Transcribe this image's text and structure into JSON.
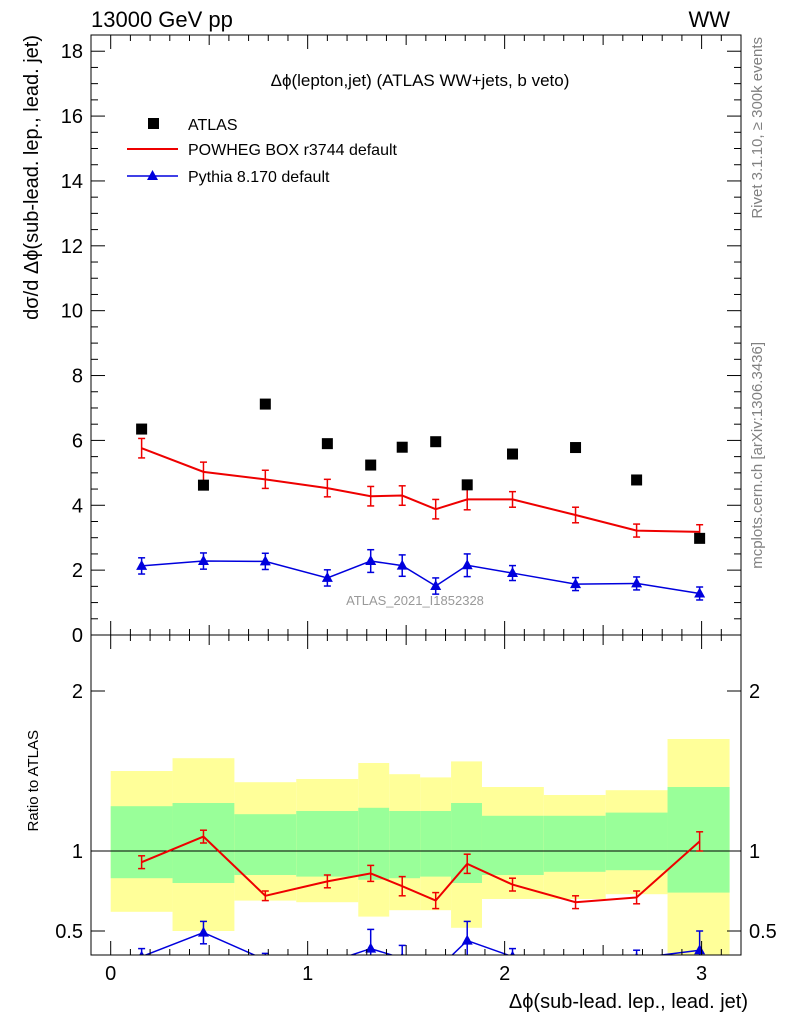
{
  "header": {
    "left": "13000 GeV pp",
    "right": "WW"
  },
  "side_labels": {
    "rivet": "Rivet 3.1.10, ≥ 300k events",
    "mcplots": "mcplots.cern.ch [arXiv:1306.3436]"
  },
  "watermark": "ATLAS_2021_I1852328",
  "chart_data": [
    {
      "panel": "main",
      "type": "scatter",
      "title": "Δϕ(lepton,jet) (ATLAS WW+jets, b veto)",
      "ylabel": "dσ/d Δϕ(sub-lead. lep., lead. jet)",
      "xlabel": "Δϕ(sub-lead. lep., lead. jet)",
      "xlim": [
        -0.1,
        3.2
      ],
      "ylim": [
        0,
        18.5
      ],
      "yticks": [
        0,
        2,
        4,
        6,
        8,
        10,
        12,
        14,
        16,
        18
      ],
      "ytick_labels": [
        "0",
        "2",
        "4",
        "6",
        "8",
        "10",
        "12",
        "14",
        "16",
        "18"
      ],
      "legend_position": "top-left",
      "colors": {
        "atlas": "#000000",
        "powheg": "#ee0000",
        "pythia": "#0000dd"
      },
      "x": [
        0.157,
        0.471,
        0.785,
        1.1,
        1.32,
        1.48,
        1.65,
        1.81,
        2.04,
        2.36,
        2.67,
        2.99
      ],
      "series": [
        {
          "name": "ATLAS",
          "style": "marker",
          "values": [
            6.35,
            4.62,
            7.12,
            5.9,
            5.24,
            5.79,
            5.96,
            4.63,
            5.58,
            5.78,
            4.78,
            2.98
          ]
        },
        {
          "name": "POWHEG BOX r3744 default",
          "style": "line",
          "values": [
            5.76,
            5.03,
            4.8,
            4.53,
            4.28,
            4.3,
            3.88,
            4.18,
            4.18,
            3.7,
            3.22,
            3.18
          ],
          "errors": [
            0.3,
            0.3,
            0.28,
            0.27,
            0.3,
            0.3,
            0.3,
            0.32,
            0.24,
            0.24,
            0.2,
            0.22
          ]
        },
        {
          "name": "Pythia 8.170 default",
          "style": "line-triangle",
          "values": [
            2.13,
            2.28,
            2.27,
            1.76,
            2.28,
            2.14,
            1.51,
            2.15,
            1.91,
            1.57,
            1.59,
            1.28
          ],
          "errors": [
            0.25,
            0.25,
            0.25,
            0.25,
            0.35,
            0.33,
            0.25,
            0.35,
            0.23,
            0.2,
            0.2,
            0.2
          ]
        }
      ]
    },
    {
      "panel": "ratio",
      "type": "line",
      "ylabel": "Ratio to ATLAS",
      "xlim": [
        -0.1,
        3.2
      ],
      "ylim": [
        0.35,
        2.35
      ],
      "yticks": [
        0.5,
        1,
        2
      ],
      "ytick_labels": [
        "0.5",
        "1",
        "2"
      ],
      "xticks": [
        0,
        1,
        2,
        3
      ],
      "xtick_labels": [
        "0",
        "1",
        "2",
        "3"
      ],
      "bands": {
        "edges": [
          0.0,
          0.314,
          0.628,
          0.942,
          1.257,
          1.414,
          1.571,
          1.728,
          1.885,
          2.199,
          2.513,
          2.827,
          3.142
        ],
        "yellow": [
          [
            0.62,
            1.5
          ],
          [
            0.5,
            1.58
          ],
          [
            0.69,
            1.43
          ],
          [
            0.68,
            1.45
          ],
          [
            0.59,
            1.55
          ],
          [
            0.63,
            1.48
          ],
          [
            0.63,
            1.46
          ],
          [
            0.52,
            1.56
          ],
          [
            0.7,
            1.4
          ],
          [
            0.7,
            1.35
          ],
          [
            0.73,
            1.38
          ],
          [
            0.35,
            1.7
          ]
        ],
        "green": [
          [
            0.83,
            1.28
          ],
          [
            0.8,
            1.3
          ],
          [
            0.85,
            1.23
          ],
          [
            0.84,
            1.25
          ],
          [
            0.82,
            1.27
          ],
          [
            0.83,
            1.25
          ],
          [
            0.84,
            1.25
          ],
          [
            0.8,
            1.3
          ],
          [
            0.85,
            1.22
          ],
          [
            0.87,
            1.22
          ],
          [
            0.88,
            1.24
          ],
          [
            0.74,
            1.4
          ]
        ]
      },
      "series": [
        {
          "name": "POWHEG BOX r3744 default",
          "values": [
            0.93,
            1.09,
            0.72,
            0.81,
            0.86,
            0.78,
            0.69,
            0.92,
            0.79,
            0.68,
            0.71,
            1.06
          ],
          "errors": [
            0.04,
            0.04,
            0.03,
            0.04,
            0.05,
            0.06,
            0.05,
            0.06,
            0.04,
            0.04,
            0.04,
            0.06
          ]
        },
        {
          "name": "Pythia 8.170 default",
          "values": [
            0.34,
            0.49,
            0.32,
            0.3,
            0.39,
            0.33,
            0.25,
            0.44,
            0.34,
            0.27,
            0.33,
            0.38
          ],
          "errors": [
            0.05,
            0.07,
            0.04,
            0.04,
            0.12,
            0.08,
            0.05,
            0.12,
            0.05,
            0.04,
            0.05,
            0.12
          ]
        }
      ]
    }
  ]
}
